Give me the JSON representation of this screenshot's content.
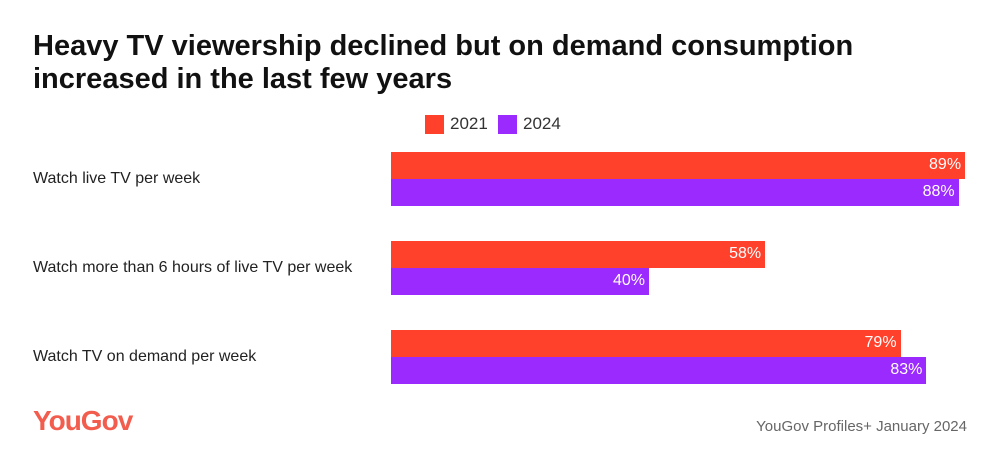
{
  "chart_data": {
    "type": "bar",
    "orientation": "horizontal",
    "title": "Heavy TV viewership declined but on demand consumption increased in the last few years",
    "categories": [
      "Watch live TV per week",
      "Watch more than 6 hours of live TV per week",
      "Watch TV on demand per week"
    ],
    "series": [
      {
        "name": "2021",
        "color": "#ff412c",
        "values": [
          89,
          58,
          79
        ],
        "labels": [
          "89%",
          "58%",
          "79%"
        ]
      },
      {
        "name": "2024",
        "color": "#9b2aff",
        "values": [
          88,
          40,
          83
        ],
        "labels": [
          "88%",
          "40%",
          "83%"
        ]
      }
    ],
    "xlim": [
      0,
      100
    ],
    "grid": false,
    "legend": "top"
  },
  "footer": {
    "logo": "YouGov",
    "logo_color": "#f25d4e",
    "source": "YouGov Profiles+ January 2024"
  }
}
